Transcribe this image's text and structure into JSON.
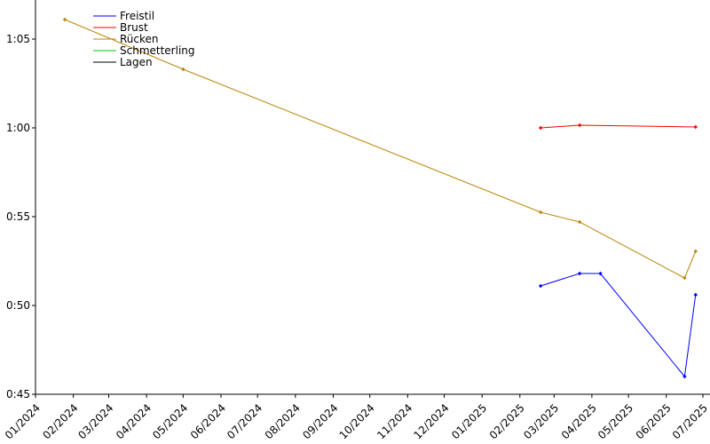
{
  "chart_data": {
    "type": "line",
    "title": "",
    "xlabel": "",
    "ylabel": "",
    "x_axis": {
      "type": "date",
      "range": [
        "2024-01-01",
        "2025-07-01"
      ],
      "tick_labels": [
        "01/2024",
        "02/2024",
        "03/2024",
        "04/2024",
        "05/2024",
        "06/2024",
        "07/2024",
        "08/2024",
        "09/2024",
        "10/2024",
        "11/2024",
        "12/2024",
        "01/2025",
        "02/2025",
        "03/2025",
        "04/2025",
        "05/2025",
        "06/2025",
        "07/2025"
      ]
    },
    "y_axis": {
      "unit": "seconds",
      "range": [
        45,
        67.2
      ],
      "ticks": [
        45,
        50,
        55,
        60,
        65
      ],
      "tick_labels": [
        "0:45",
        "0:50",
        "0:55",
        "1:00",
        "1:05"
      ]
    },
    "grid": false,
    "legend_position": "top-left",
    "series": [
      {
        "name": "Freistil",
        "color": "#0000ff",
        "points": [
          {
            "x": "2025-02-18",
            "y": 51.1
          },
          {
            "x": "2025-03-22",
            "y": 51.8
          },
          {
            "x": "2025-04-08",
            "y": 51.8
          },
          {
            "x": "2025-06-16",
            "y": 46.0
          },
          {
            "x": "2025-06-25",
            "y": 50.6
          }
        ]
      },
      {
        "name": "Brust",
        "color": "#ff0000",
        "points": [
          {
            "x": "2025-02-18",
            "y": 60.0
          },
          {
            "x": "2025-03-22",
            "y": 60.15
          },
          {
            "x": "2025-06-25",
            "y": 60.05
          }
        ]
      },
      {
        "name": "Rücken",
        "color": "#b8860b",
        "points": [
          {
            "x": "2024-01-25",
            "y": 66.1
          },
          {
            "x": "2024-05-01",
            "y": 63.3
          },
          {
            "x": "2025-02-18",
            "y": 55.25
          },
          {
            "x": "2025-03-22",
            "y": 54.7
          },
          {
            "x": "2025-06-16",
            "y": 51.55
          },
          {
            "x": "2025-06-25",
            "y": 53.05
          }
        ]
      },
      {
        "name": "Schmetterling",
        "color": "#00cc00",
        "points": []
      },
      {
        "name": "Lagen",
        "color": "#000000",
        "points": []
      }
    ]
  }
}
